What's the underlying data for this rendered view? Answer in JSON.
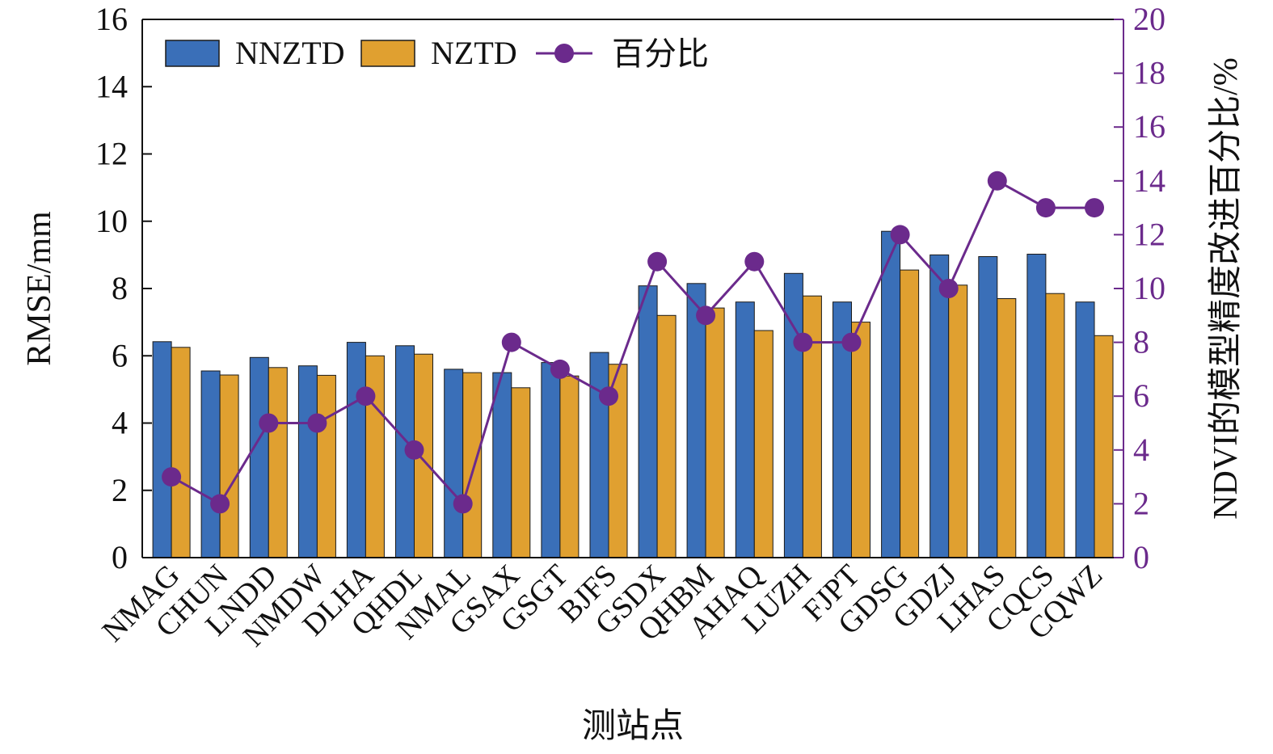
{
  "chart_data": {
    "type": "bar",
    "categories": [
      "NMAG",
      "CHUN",
      "LNDD",
      "NMDW",
      "DLHA",
      "QHDL",
      "NMAL",
      "GSAX",
      "GSGT",
      "BJFS",
      "GSDX",
      "QHBM",
      "AHAQ",
      "LUZH",
      "FJPT",
      "GDSG",
      "GDZJ",
      "LHAS",
      "CQCS",
      "CQWZ"
    ],
    "series": [
      {
        "name": "NNZTD",
        "type": "bar",
        "axis": "left",
        "color": "#3a6fb8",
        "values": [
          6.42,
          5.55,
          5.95,
          5.7,
          6.4,
          6.3,
          5.6,
          5.5,
          5.8,
          6.1,
          8.08,
          8.15,
          7.6,
          8.45,
          7.6,
          9.7,
          9.0,
          8.95,
          9.02,
          7.6
        ]
      },
      {
        "name": "NZTD",
        "type": "bar",
        "axis": "left",
        "color": "#e0a030",
        "values": [
          6.25,
          5.43,
          5.65,
          5.42,
          6.0,
          6.05,
          5.5,
          5.05,
          5.4,
          5.75,
          7.2,
          7.42,
          6.75,
          7.78,
          7.0,
          8.55,
          8.1,
          7.7,
          7.85,
          6.6
        ]
      },
      {
        "name": "百分比",
        "type": "line",
        "axis": "right",
        "color": "#6b2a8c",
        "values": [
          3,
          2,
          5,
          5,
          6,
          4,
          2,
          8,
          7,
          6,
          11,
          9,
          11,
          8,
          8,
          12,
          10,
          14,
          13,
          13
        ]
      }
    ],
    "xlabel": "测站点",
    "ylabel": "RMSE/mm",
    "y2label": "NDVI的模型精度改进百分比/%",
    "ylim": [
      0,
      16
    ],
    "y2lim": [
      0,
      20
    ],
    "yticks": [
      "0",
      "2",
      "4",
      "6",
      "8",
      "10",
      "12",
      "14",
      "16"
    ],
    "y2ticks": [
      "0",
      "2",
      "4",
      "6",
      "8",
      "10",
      "12",
      "14",
      "16",
      "18",
      "20"
    ],
    "y2_color": "#6b2a8c",
    "grid": false,
    "legend_position": "top-left"
  }
}
